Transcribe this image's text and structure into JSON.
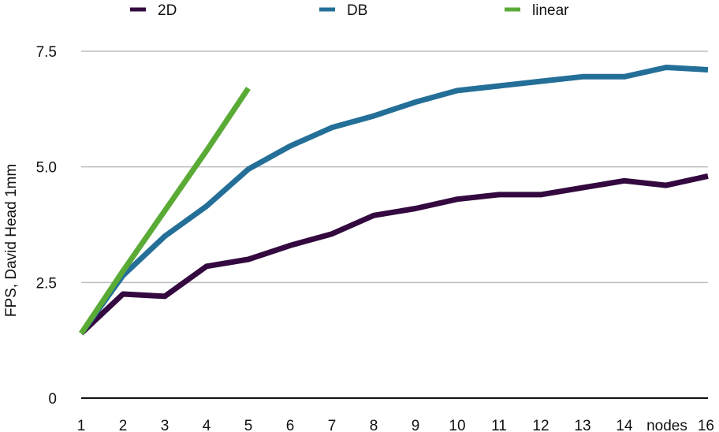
{
  "chart_data": {
    "type": "line",
    "title": "",
    "xlabel": "nodes",
    "ylabel": "FPS, David Head 1mm",
    "ylim": [
      0,
      7.5
    ],
    "xlim": [
      1,
      16
    ],
    "grid": true,
    "legend_position": "top",
    "x_ticks": [
      "1",
      "2",
      "3",
      "4",
      "5",
      "6",
      "7",
      "8",
      "9",
      "10",
      "11",
      "12",
      "13",
      "14",
      "16"
    ],
    "y_ticks": [
      "0",
      "2.5",
      "5.0",
      "7.5"
    ],
    "series": [
      {
        "name": "2D",
        "color": "#33093f",
        "x": [
          1,
          2,
          3,
          4,
          5,
          6,
          7,
          8,
          9,
          10,
          11,
          12,
          13,
          14,
          15,
          16
        ],
        "y": [
          1.4,
          2.25,
          2.2,
          2.85,
          3.0,
          3.3,
          3.55,
          3.95,
          4.1,
          4.3,
          4.4,
          4.4,
          4.55,
          4.7,
          4.6,
          4.8
        ]
      },
      {
        "name": "DB",
        "color": "#246f98",
        "x": [
          1,
          2,
          3,
          4,
          5,
          6,
          7,
          8,
          9,
          10,
          11,
          12,
          13,
          14,
          15,
          16
        ],
        "y": [
          1.4,
          2.65,
          3.5,
          4.15,
          4.95,
          5.45,
          5.85,
          6.1,
          6.4,
          6.65,
          6.75,
          6.85,
          6.95,
          6.95,
          7.15,
          7.1
        ]
      },
      {
        "name": "linear",
        "color": "#5aaa36",
        "x": [
          1,
          2,
          3,
          4,
          5
        ],
        "y": [
          1.4,
          2.75,
          4.05,
          5.35,
          6.7
        ]
      }
    ]
  }
}
